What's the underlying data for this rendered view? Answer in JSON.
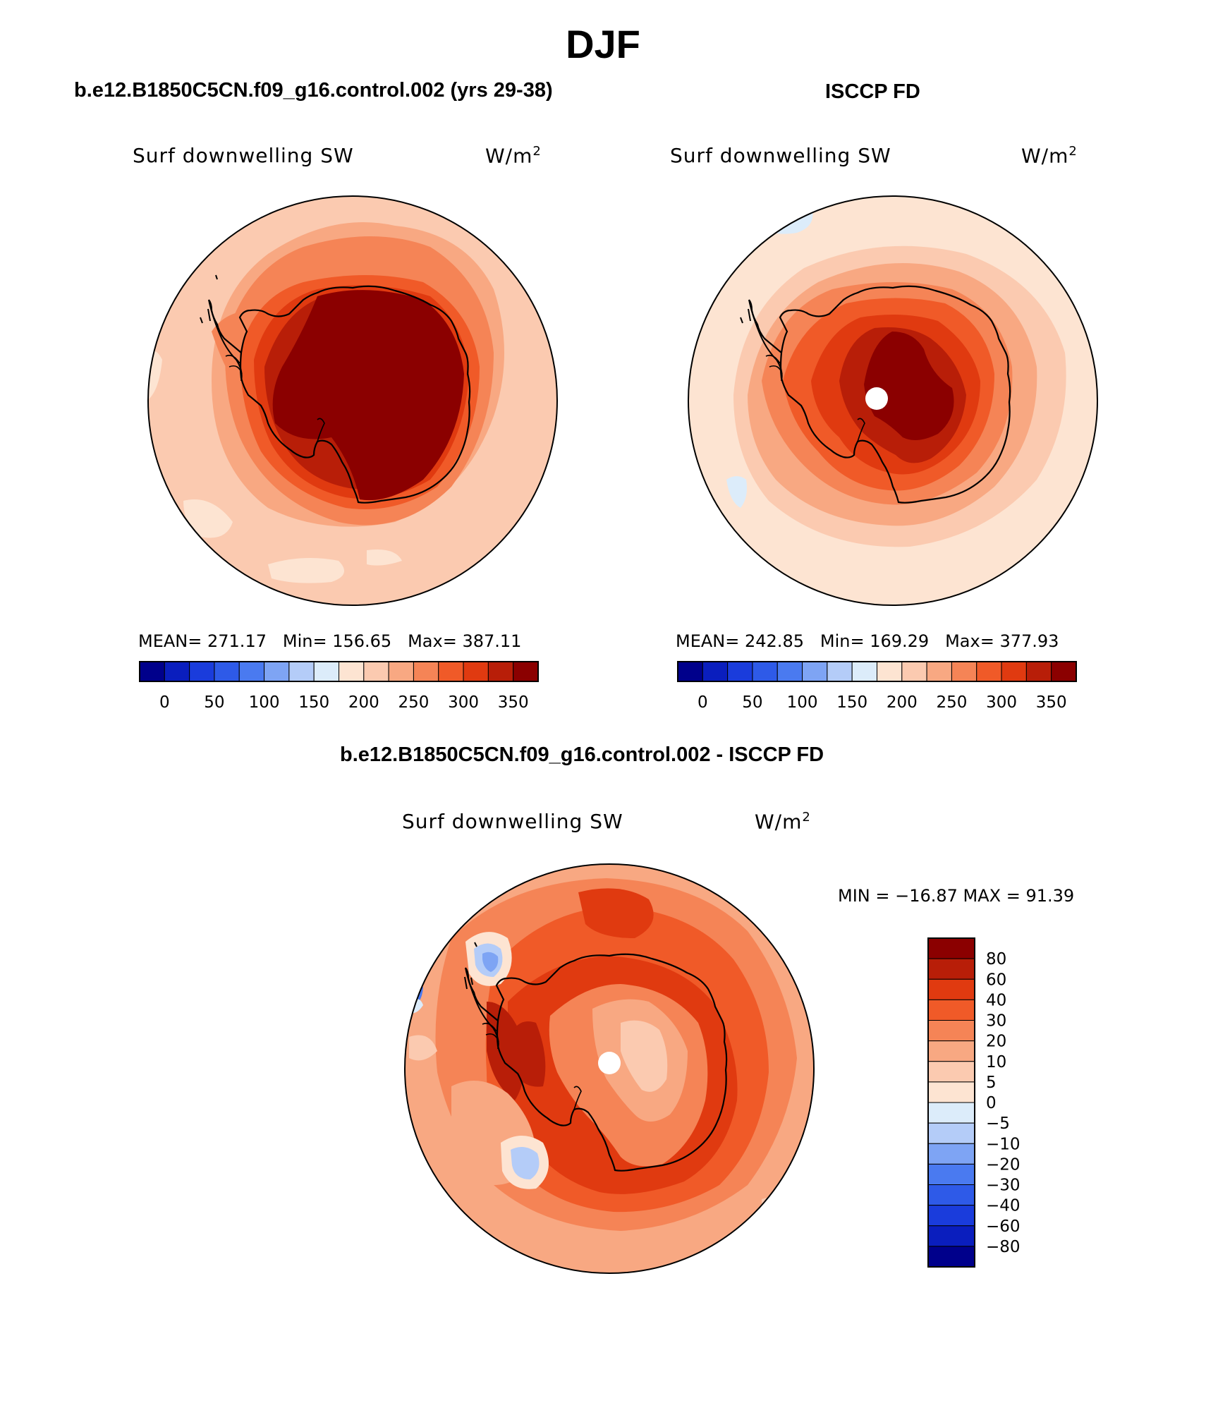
{
  "title": "DJF",
  "panels": [
    {
      "subtitle": "b.e12.B1850C5CN.f09_g16.control.002 (yrs 29-38)",
      "variable": "Surf downwelling SW",
      "units": "W/m",
      "units_sup": "2",
      "stats": {
        "mean_label": "MEAN=",
        "mean": "271.17",
        "min_label": "Min=",
        "min": "156.65",
        "max_label": "Max=",
        "max": "387.11"
      }
    },
    {
      "subtitle": "ISCCP FD",
      "variable": "Surf downwelling SW",
      "units": "W/m",
      "units_sup": "2",
      "stats": {
        "mean_label": "MEAN=",
        "mean": "242.85",
        "min_label": "Min=",
        "min": "169.29",
        "max_label": "Max=",
        "max": "377.93"
      }
    },
    {
      "subtitle": "b.e12.B1850C5CN.f09_g16.control.002 - ISCCP FD",
      "variable": "Surf downwelling SW",
      "units": "W/m",
      "units_sup": "2",
      "minmax": "MIN = −16.87 MAX =   91.39"
    }
  ],
  "colorbar_abs": {
    "ticks": [
      "0",
      "50",
      "100",
      "150",
      "200",
      "250",
      "300",
      "350"
    ],
    "colors": [
      "#00008b",
      "#0a1ebe",
      "#1a3cdc",
      "#2e5ae8",
      "#4a7af0",
      "#7ea4f4",
      "#b4ccf8",
      "#dcecfa",
      "#fde4d2",
      "#fbcab0",
      "#f8a882",
      "#f58456",
      "#f05a28",
      "#e03a10",
      "#b81e08",
      "#8b0000"
    ]
  },
  "colorbar_diff": {
    "ticks": [
      "80",
      "60",
      "40",
      "30",
      "20",
      "10",
      "5",
      "0",
      "−5",
      "−10",
      "−20",
      "−30",
      "−40",
      "−60",
      "−80"
    ],
    "colors": [
      "#8b0000",
      "#b81e08",
      "#e03a10",
      "#f05a28",
      "#f58456",
      "#f8a882",
      "#fbcab0",
      "#fde4d2",
      "#dcecfa",
      "#b4ccf8",
      "#7ea4f4",
      "#4a7af0",
      "#2e5ae8",
      "#1a3cdc",
      "#0a1ebe",
      "#00008b"
    ]
  }
}
